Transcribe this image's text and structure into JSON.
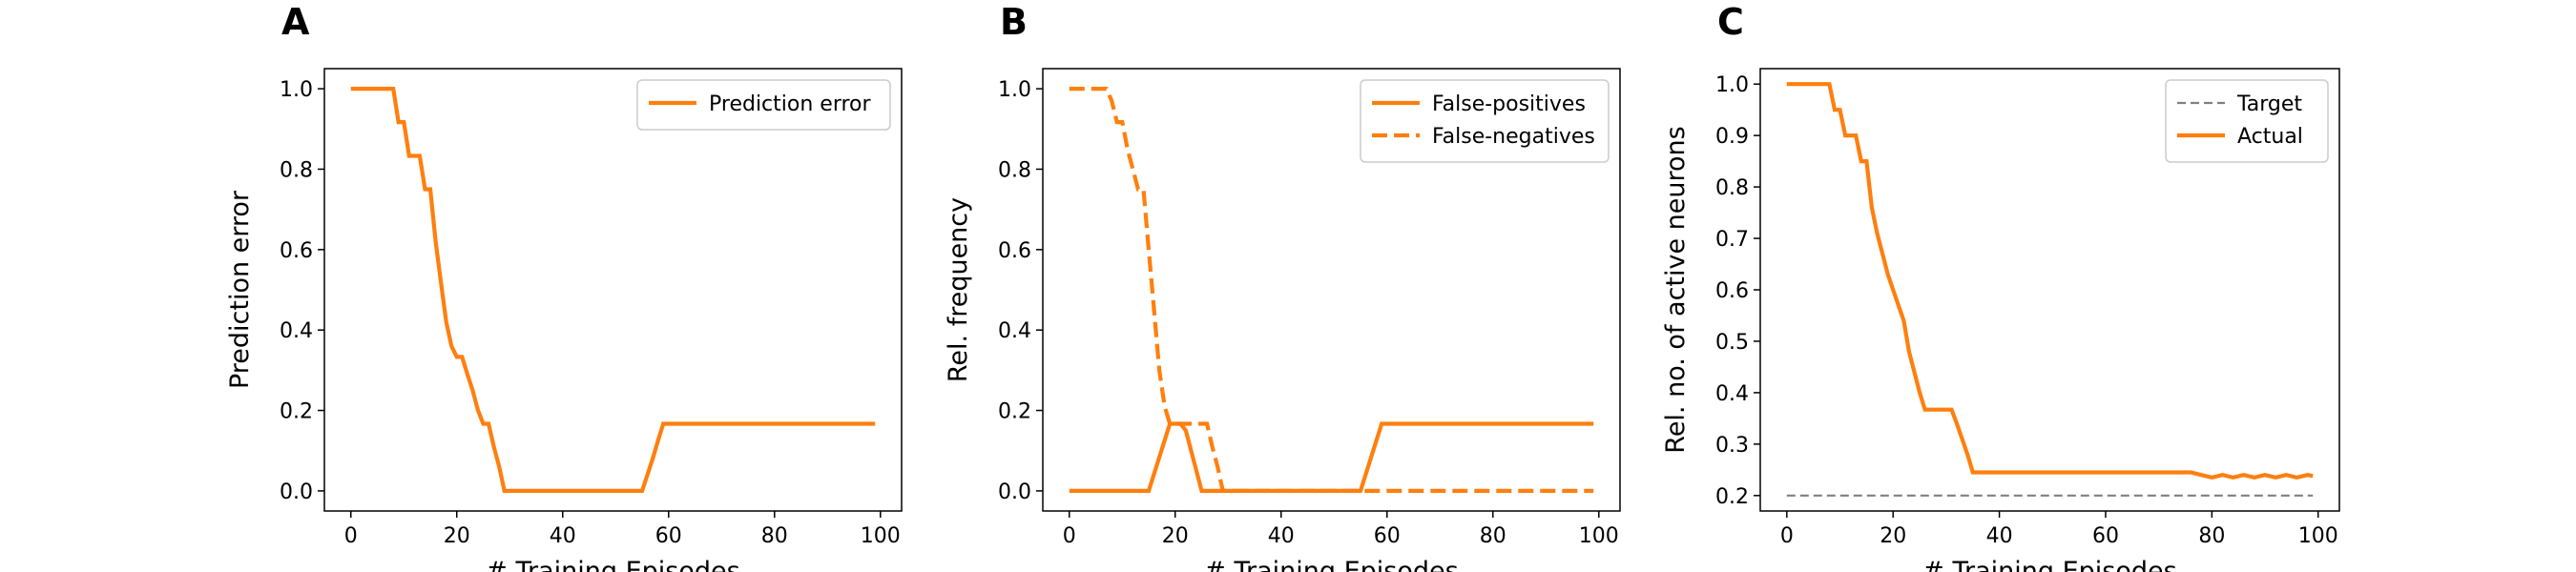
{
  "chart_data": [
    {
      "panel": "A",
      "type": "line",
      "xlabel": "# Training Episodes",
      "ylabel": "Prediction error",
      "xlim": [
        -5,
        104
      ],
      "ylim": [
        -0.05,
        1.05
      ],
      "xticks": [
        0,
        20,
        40,
        60,
        80,
        100
      ],
      "xtick_labels": [
        "0",
        "20",
        "40",
        "60",
        "80",
        "100"
      ],
      "yticks": [
        0.0,
        0.2,
        0.4,
        0.6,
        0.8,
        1.0
      ],
      "ytick_labels": [
        "0.0",
        "0.2",
        "0.4",
        "0.6",
        "0.8",
        "1.0"
      ],
      "grid": false,
      "legend_position": "top-right",
      "series": [
        {
          "name": "Prediction error",
          "color": "#ff7f0e",
          "style": "solid",
          "x": [
            0,
            8,
            9,
            10,
            11,
            12,
            13,
            14,
            15,
            16,
            17,
            18,
            19,
            20,
            21,
            22,
            23,
            24,
            25,
            26,
            27,
            28,
            29,
            30,
            35,
            40,
            45,
            50,
            55,
            56,
            57,
            58,
            59,
            70,
            80,
            90,
            99
          ],
          "y": [
            1.0,
            1.0,
            0.917,
            0.917,
            0.833,
            0.833,
            0.833,
            0.75,
            0.75,
            0.62,
            0.52,
            0.42,
            0.36,
            0.333,
            0.333,
            0.29,
            0.25,
            0.2,
            0.167,
            0.167,
            0.11,
            0.06,
            0.0,
            0.0,
            0.0,
            0.0,
            0.0,
            0.0,
            0.0,
            0.04,
            0.08,
            0.125,
            0.167,
            0.167,
            0.167,
            0.167,
            0.167
          ]
        }
      ]
    },
    {
      "panel": "B",
      "type": "line",
      "xlabel": "# Training Episodes",
      "ylabel": "Rel. frequency",
      "xlim": [
        -5,
        104
      ],
      "ylim": [
        -0.05,
        1.05
      ],
      "xticks": [
        0,
        20,
        40,
        60,
        80,
        100
      ],
      "xtick_labels": [
        "0",
        "20",
        "40",
        "60",
        "80",
        "100"
      ],
      "yticks": [
        0.0,
        0.2,
        0.4,
        0.6,
        0.8,
        1.0
      ],
      "ytick_labels": [
        "0.0",
        "0.2",
        "0.4",
        "0.6",
        "0.8",
        "1.0"
      ],
      "grid": false,
      "legend_position": "top-right",
      "series": [
        {
          "name": "False-positives",
          "color": "#ff7f0e",
          "style": "solid",
          "x": [
            0,
            15,
            19,
            20,
            21,
            22,
            25,
            26,
            30,
            40,
            50,
            55,
            59,
            60,
            70,
            80,
            90,
            99
          ],
          "y": [
            0.0,
            0.0,
            0.167,
            0.167,
            0.167,
            0.15,
            0.0,
            0.0,
            0.0,
            0.0,
            0.0,
            0.0,
            0.167,
            0.167,
            0.167,
            0.167,
            0.167,
            0.167
          ]
        },
        {
          "name": "False-negatives",
          "color": "#ff7f0e",
          "style": "dashed",
          "x": [
            0,
            7,
            8,
            9,
            10,
            11,
            12,
            13,
            14,
            15,
            16,
            17,
            18,
            19,
            20,
            21,
            22,
            24,
            26,
            27,
            28,
            29,
            30,
            40,
            50,
            60,
            70,
            80,
            90,
            99
          ],
          "y": [
            1.0,
            1.0,
            0.97,
            0.917,
            0.917,
            0.85,
            0.8,
            0.75,
            0.75,
            0.6,
            0.45,
            0.3,
            0.21,
            0.167,
            0.167,
            0.167,
            0.167,
            0.167,
            0.167,
            0.11,
            0.06,
            0.0,
            0.0,
            0.0,
            0.0,
            0.0,
            0.0,
            0.0,
            0.0,
            0.0
          ]
        }
      ]
    },
    {
      "panel": "C",
      "type": "line",
      "xlabel": "# Training Episodes",
      "ylabel": "Rel. no. of active neurons",
      "xlim": [
        -5,
        104
      ],
      "ylim": [
        0.17,
        1.03
      ],
      "xticks": [
        0,
        20,
        40,
        60,
        80,
        100
      ],
      "xtick_labels": [
        "0",
        "20",
        "40",
        "60",
        "80",
        "100"
      ],
      "yticks": [
        0.2,
        0.3,
        0.4,
        0.5,
        0.6,
        0.7,
        0.8,
        0.9,
        1.0
      ],
      "ytick_labels": [
        "0.2",
        "0.3",
        "0.4",
        "0.5",
        "0.6",
        "0.7",
        "0.8",
        "0.9",
        "1.0"
      ],
      "grid": false,
      "legend_position": "top-right",
      "series": [
        {
          "name": "Target",
          "color": "#808080",
          "style": "dashed",
          "x": [
            0,
            99
          ],
          "y": [
            0.2,
            0.2
          ]
        },
        {
          "name": "Actual",
          "color": "#ff7f0e",
          "style": "solid",
          "x": [
            0,
            8,
            9,
            10,
            11,
            12,
            13,
            14,
            15,
            16,
            17,
            18,
            19,
            20,
            21,
            22,
            23,
            24,
            25,
            26,
            27,
            28,
            29,
            30,
            31,
            32,
            33,
            34,
            35,
            40,
            50,
            60,
            70,
            76,
            78,
            80,
            82,
            84,
            86,
            88,
            90,
            92,
            94,
            96,
            98,
            99
          ],
          "y": [
            1.0,
            1.0,
            0.95,
            0.95,
            0.9,
            0.9,
            0.9,
            0.85,
            0.85,
            0.76,
            0.71,
            0.67,
            0.63,
            0.6,
            0.57,
            0.54,
            0.48,
            0.44,
            0.4,
            0.367,
            0.367,
            0.367,
            0.367,
            0.367,
            0.367,
            0.34,
            0.31,
            0.28,
            0.245,
            0.245,
            0.245,
            0.245,
            0.245,
            0.245,
            0.24,
            0.235,
            0.24,
            0.235,
            0.24,
            0.235,
            0.24,
            0.235,
            0.24,
            0.235,
            0.24,
            0.238
          ]
        }
      ]
    }
  ]
}
